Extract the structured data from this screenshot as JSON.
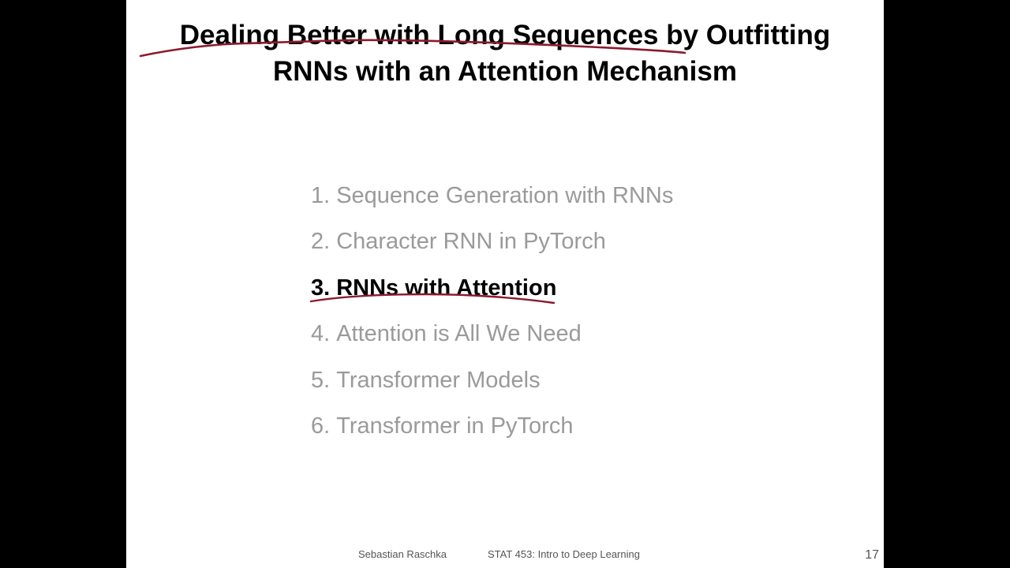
{
  "slide": {
    "title_lines": [
      "Dealing Better with Long Sequences by Outfitting",
      "RNNs with an Attention Mechanism"
    ],
    "agenda": [
      {
        "number": "1.",
        "label": "Sequence Generation with RNNs"
      },
      {
        "number": "2.",
        "label": "Character RNN in PyTorch"
      },
      {
        "number": "3.",
        "label": "RNNs with Attention"
      },
      {
        "number": "4.",
        "label": "Attention is All We Need"
      },
      {
        "number": "5.",
        "label": "Transformer Models"
      },
      {
        "number": "6.",
        "label": "Transformer in PyTorch"
      }
    ],
    "active_item": 3,
    "footer": {
      "author": "Sebastian Raschka",
      "course": "STAT 453: Intro to Deep Learning"
    },
    "page_number": "17"
  },
  "colors": {
    "annotation_ink": "#8a1a2e",
    "inactive_text": "#9a9a9a",
    "active_text": "#000000"
  }
}
